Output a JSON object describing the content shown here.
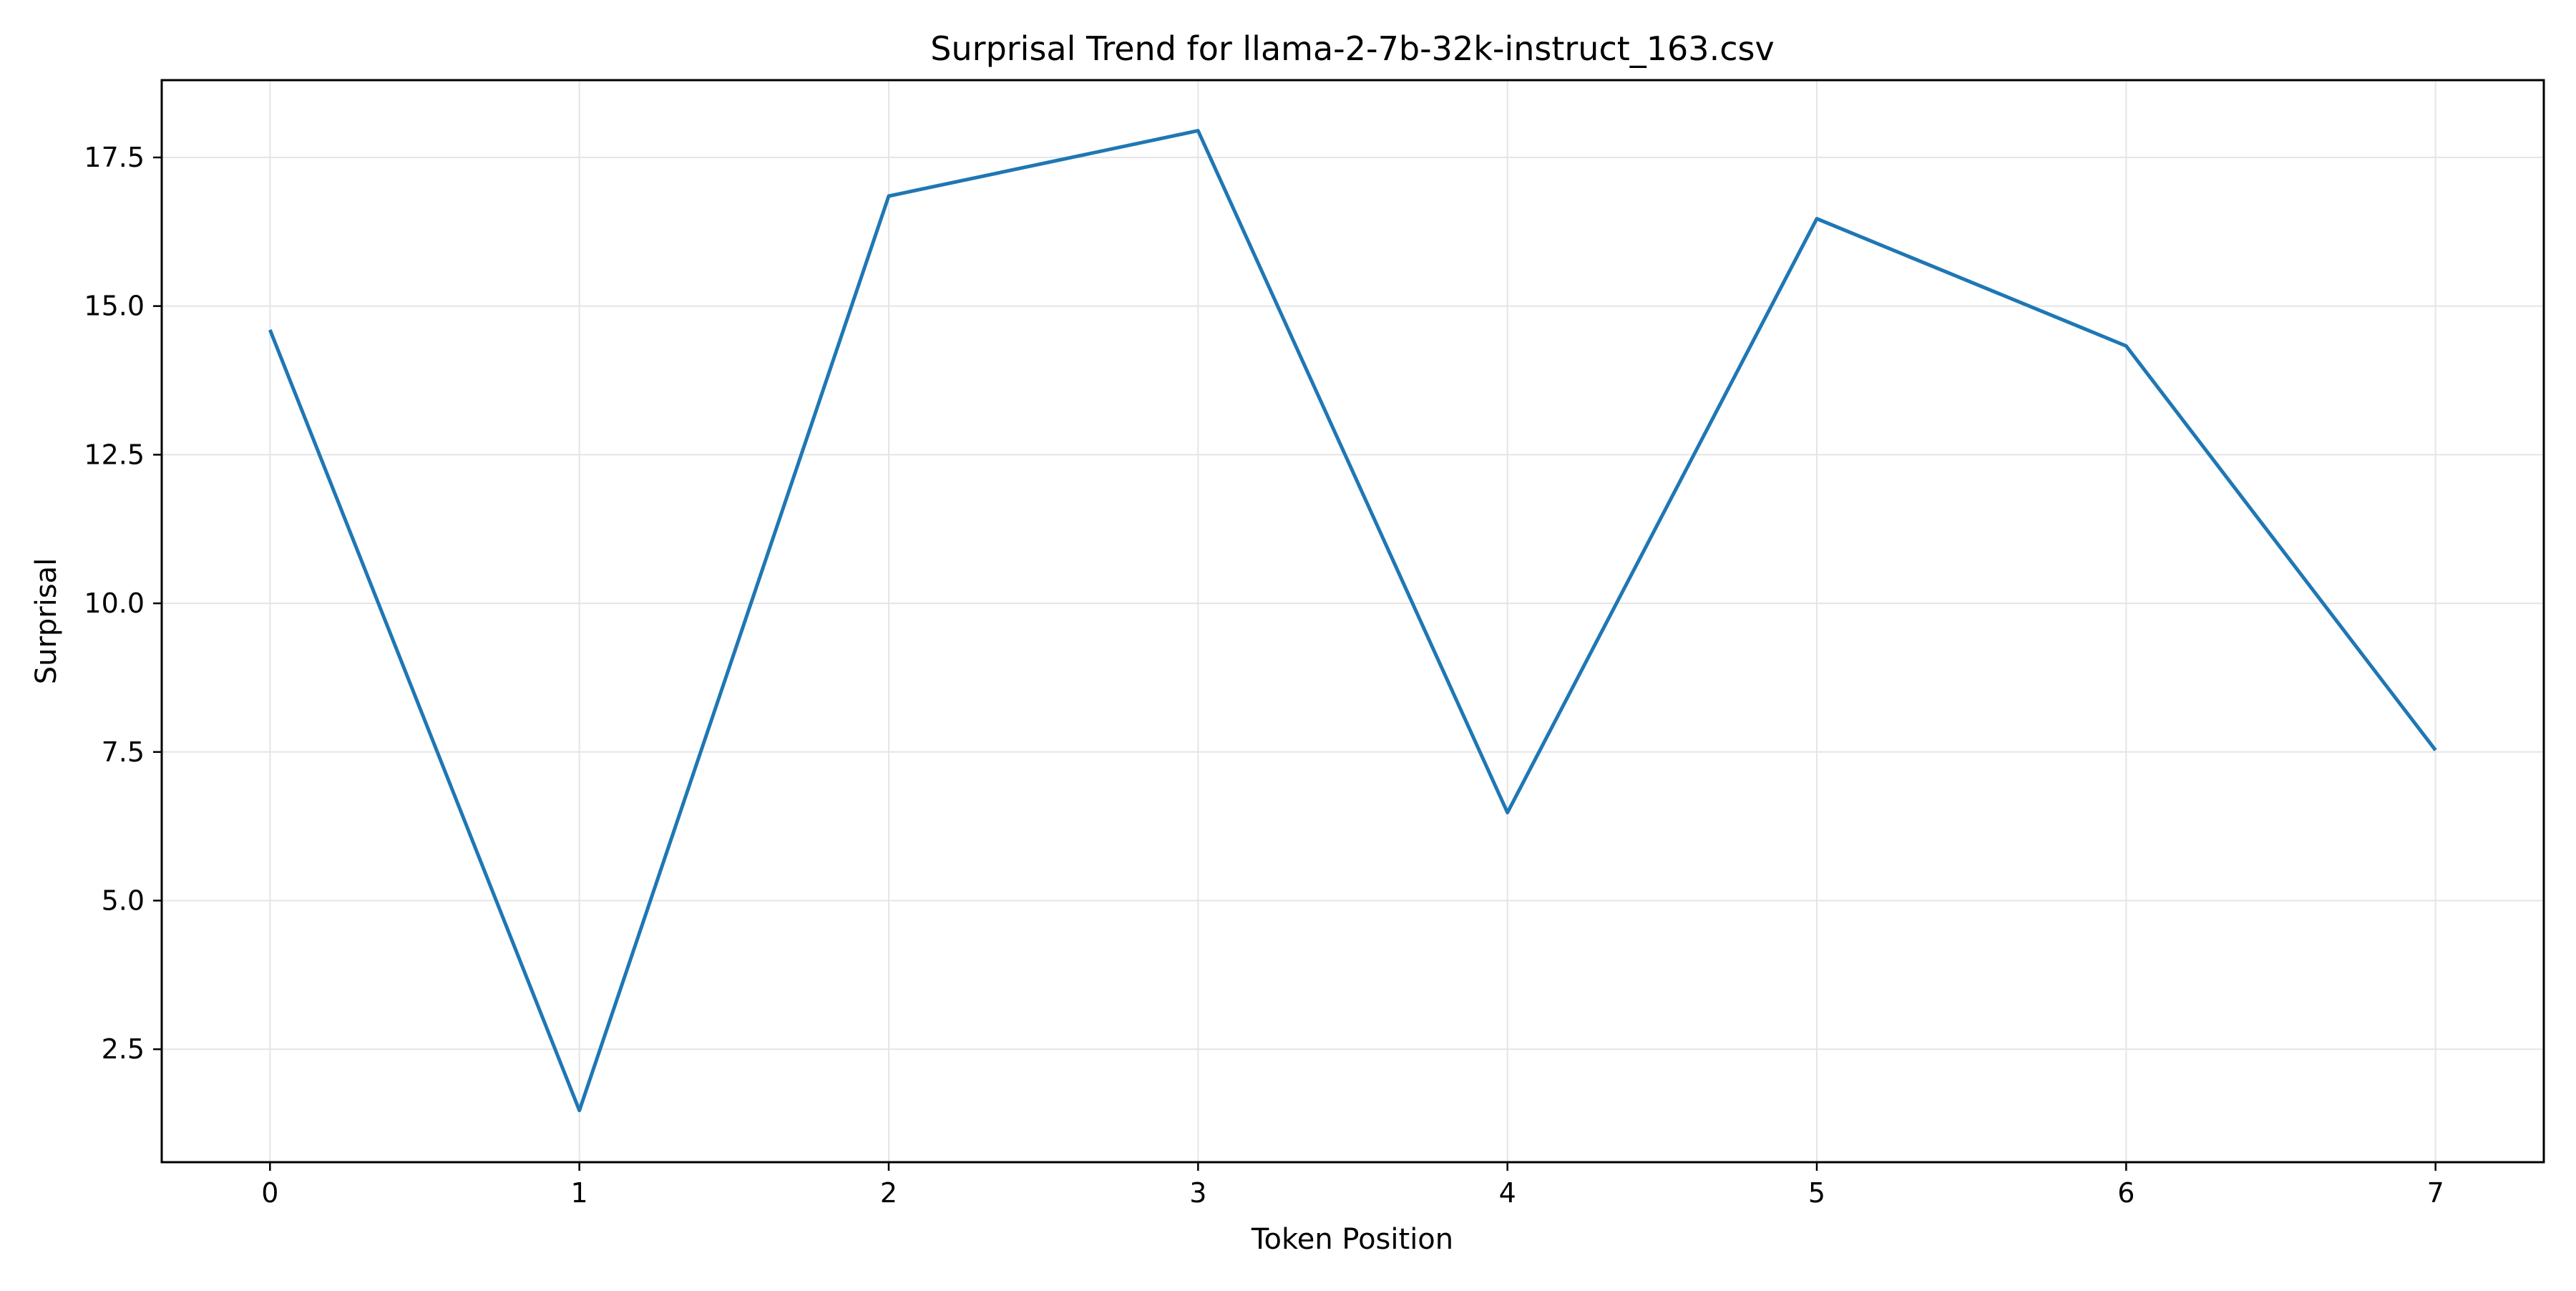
{
  "chart_data": {
    "type": "line",
    "title": "Surprisal Trend for llama-2-7b-32k-instruct_163.csv",
    "xlabel": "Token Position",
    "ylabel": "Surprisal",
    "x": [
      0,
      1,
      2,
      3,
      4,
      5,
      6,
      7
    ],
    "series": [
      {
        "values": [
          14.6,
          1.47,
          16.85,
          17.95,
          6.48,
          16.47,
          14.33,
          7.53
        ],
        "color": "#1f77b4"
      }
    ],
    "xticks": [
      "0",
      "1",
      "2",
      "3",
      "4",
      "5",
      "6",
      "7"
    ],
    "yticks": [
      "2.5",
      "5.0",
      "7.5",
      "10.0",
      "12.5",
      "15.0",
      "17.5"
    ],
    "xlim": [
      -0.35,
      7.35
    ],
    "ylim": [
      0.6,
      18.8
    ],
    "grid": true,
    "colors": {
      "line": "#1f77b4",
      "grid": "#e5e5e5",
      "axes": "#000000"
    }
  }
}
